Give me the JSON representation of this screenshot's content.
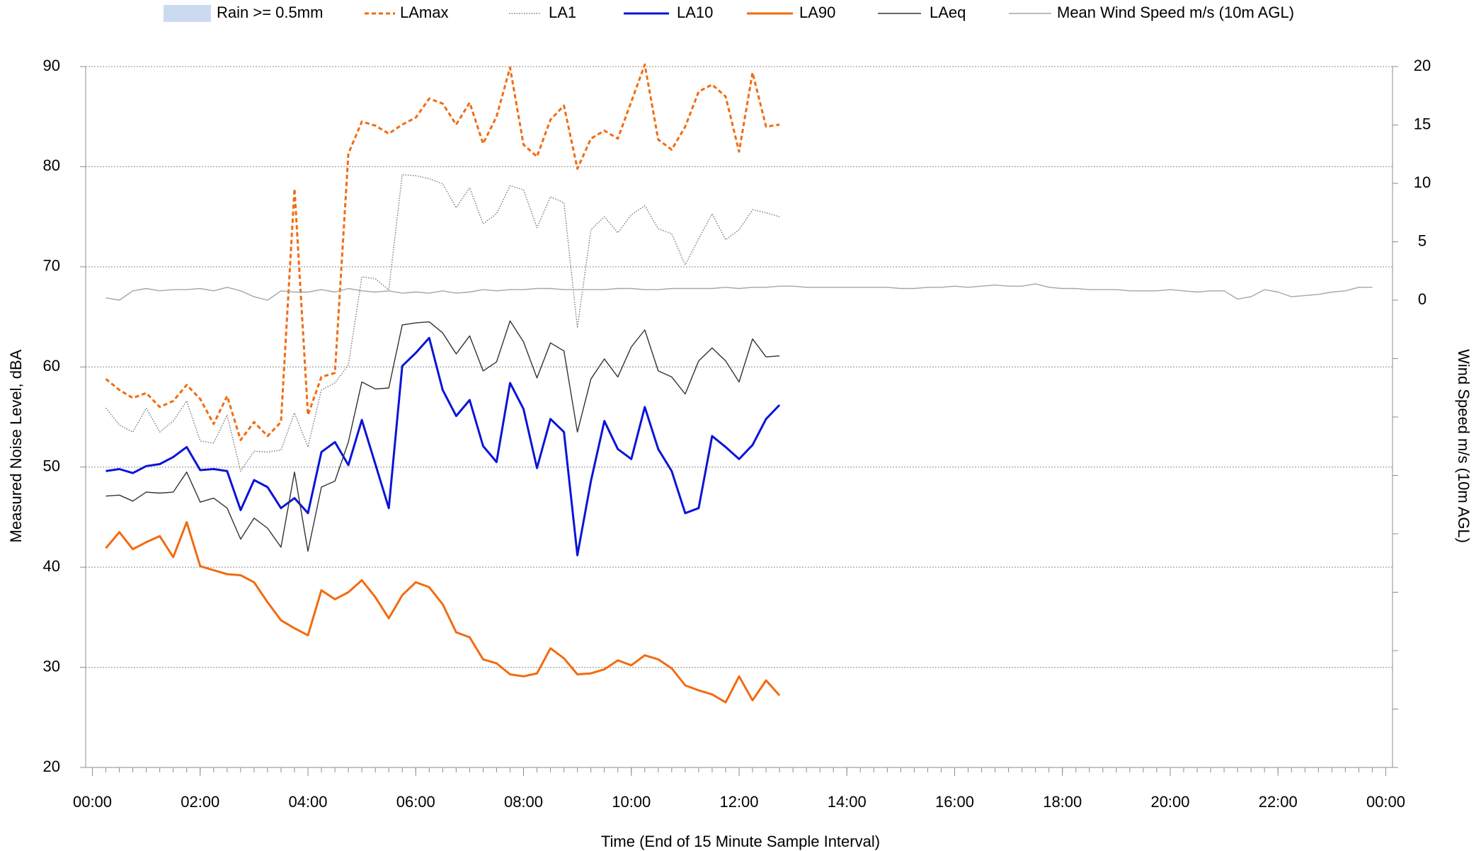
{
  "chart_data": {
    "type": "line",
    "xlabel": "Time (End of 15 Minute Sample Interval)",
    "ylabel": "Measured Noise Level, dBA",
    "y2label": "Wind Speed m/s (10m AGL)",
    "xlim": [
      -0.125,
      24.125
    ],
    "xticks": [
      {
        "value": 0,
        "label": "00:00"
      },
      {
        "value": 2,
        "label": "02:00"
      },
      {
        "value": 4,
        "label": "04:00"
      },
      {
        "value": 6,
        "label": "06:00"
      },
      {
        "value": 8,
        "label": "08:00"
      },
      {
        "value": 10,
        "label": "10:00"
      },
      {
        "value": 12,
        "label": "12:00"
      },
      {
        "value": 14,
        "label": "14:00"
      },
      {
        "value": 16,
        "label": "16:00"
      },
      {
        "value": 18,
        "label": "18:00"
      },
      {
        "value": 20,
        "label": "20:00"
      },
      {
        "value": 22,
        "label": "22:00"
      },
      {
        "value": 24,
        "label": "00:00"
      }
    ],
    "ylim": [
      20,
      90
    ],
    "yticks": [
      20,
      30,
      40,
      50,
      60,
      70,
      80,
      90
    ],
    "y2lim": [
      -40,
      20
    ],
    "y2ticks": [
      0,
      5,
      10,
      15,
      20
    ],
    "grid": true,
    "legend": "top",
    "rain": {
      "name": "Rain >= 0.5mm",
      "color": "#ccdaf0"
    },
    "x": [
      0.25,
      0.5,
      0.75,
      1,
      1.25,
      1.5,
      1.75,
      2,
      2.25,
      2.5,
      2.75,
      3,
      3.25,
      3.5,
      3.75,
      4,
      4.25,
      4.5,
      4.75,
      5,
      5.25,
      5.5,
      5.75,
      6,
      6.25,
      6.5,
      6.75,
      7,
      7.25,
      7.5,
      7.75,
      8,
      8.25,
      8.5,
      8.75,
      9,
      9.25,
      9.5,
      9.75,
      10,
      10.25,
      10.5,
      10.75,
      11,
      11.25,
      11.5,
      11.75,
      12,
      12.25,
      12.5,
      12.75,
      13,
      13.25,
      13.5,
      13.75,
      14,
      14.25,
      14.5,
      14.75,
      15,
      15.25,
      15.5,
      15.75,
      16,
      16.25,
      16.5,
      16.75,
      17,
      17.25,
      17.5,
      17.75,
      18,
      18.25,
      18.5,
      18.75,
      19,
      19.25,
      19.5,
      19.75,
      20,
      20.25,
      20.5,
      20.75,
      21,
      21.25,
      21.5,
      21.75,
      22,
      22.25,
      22.5,
      22.75,
      23,
      23.25,
      23.5,
      23.75
    ],
    "series": [
      {
        "name": "LAmax",
        "color": "#f26b0f",
        "style": "dashed",
        "weight": "bold",
        "values": [
          58.8,
          57.7,
          56.9,
          57.4,
          56.0,
          56.6,
          58.2,
          56.8,
          54.3,
          57.1,
          52.7,
          54.5,
          53.1,
          54.5,
          77.8,
          55.2,
          59.0,
          59.4,
          81.3,
          84.5,
          84.1,
          83.3,
          84.2,
          84.9,
          86.8,
          86.3,
          84.2,
          86.4,
          82.3,
          85.0,
          89.9,
          82.2,
          81.0,
          84.7,
          86.1,
          79.8,
          82.8,
          83.6,
          82.8,
          86.5,
          90.2,
          82.7,
          81.7,
          84.0,
          87.5,
          88.2,
          87.0,
          81.5,
          89.4,
          84.0,
          84.2,
          null,
          null,
          null,
          null,
          null,
          null,
          null,
          null,
          null,
          null,
          null,
          null,
          null,
          null,
          null,
          null,
          null,
          null,
          null,
          null,
          null,
          null,
          null,
          null,
          null,
          null,
          null,
          null,
          null,
          null,
          null,
          null,
          null,
          null,
          null,
          null,
          null,
          null,
          null,
          null,
          null,
          null,
          null,
          null
        ]
      },
      {
        "name": "LA1",
        "color": "#777777",
        "style": "dotted",
        "weight": "thin",
        "values": [
          55.9,
          54.2,
          53.5,
          55.9,
          53.5,
          54.6,
          56.6,
          52.6,
          52.4,
          55.2,
          49.6,
          51.6,
          51.5,
          51.7,
          55.4,
          52.0,
          57.7,
          58.4,
          60.2,
          69.0,
          68.8,
          67.7,
          79.2,
          79.1,
          78.8,
          78.3,
          75.9,
          77.9,
          74.3,
          75.3,
          78.1,
          77.7,
          73.9,
          77.0,
          76.4,
          63.9,
          73.7,
          75.0,
          73.4,
          75.2,
          76.1,
          73.8,
          73.3,
          70.2,
          72.8,
          75.3,
          72.7,
          73.7,
          75.7,
          75.4,
          75.0,
          null,
          null,
          null,
          null,
          null,
          null,
          null,
          null,
          null,
          null,
          null,
          null,
          null,
          null,
          null,
          null,
          null,
          null,
          null,
          null,
          null,
          null,
          null,
          null,
          null,
          null,
          null,
          null,
          null,
          null,
          null,
          null,
          null,
          null,
          null,
          null,
          null,
          null,
          null,
          null,
          null,
          null,
          null,
          null
        ]
      },
      {
        "name": "LA10",
        "color": "#0a14d8",
        "style": "solid",
        "weight": "bold",
        "values": [
          49.6,
          49.8,
          49.4,
          50.1,
          50.3,
          51.0,
          52.0,
          49.7,
          49.8,
          49.6,
          45.7,
          48.7,
          48.0,
          45.9,
          46.9,
          45.4,
          51.5,
          52.5,
          50.2,
          54.7,
          50.3,
          45.9,
          60.1,
          61.4,
          62.9,
          57.7,
          55.1,
          56.7,
          52.1,
          50.5,
          58.4,
          55.8,
          49.9,
          54.8,
          53.5,
          41.2,
          48.6,
          54.6,
          51.8,
          50.8,
          56.0,
          51.8,
          49.6,
          45.4,
          45.9,
          53.1,
          52.0,
          50.8,
          52.2,
          54.8,
          56.2,
          null,
          null,
          null,
          null,
          null,
          null,
          null,
          null,
          null,
          null,
          null,
          null,
          null,
          null,
          null,
          null,
          null,
          null,
          null,
          null,
          null,
          null,
          null,
          null,
          null,
          null,
          null,
          null,
          null,
          null,
          null,
          null,
          null,
          null,
          null,
          null,
          null,
          null,
          null,
          null,
          null,
          null,
          null,
          null
        ]
      },
      {
        "name": "LA90",
        "color": "#f26b0f",
        "style": "solid",
        "weight": "bold",
        "values": [
          41.9,
          43.5,
          41.8,
          42.5,
          43.1,
          41.0,
          44.5,
          40.1,
          39.7,
          39.3,
          39.2,
          38.5,
          36.5,
          34.7,
          33.9,
          33.2,
          37.7,
          36.8,
          37.5,
          38.7,
          37.0,
          34.9,
          37.2,
          38.5,
          38.0,
          36.3,
          33.5,
          33.0,
          30.8,
          30.4,
          29.3,
          29.1,
          29.4,
          31.9,
          30.9,
          29.3,
          29.4,
          29.8,
          30.7,
          30.2,
          31.2,
          30.8,
          29.9,
          28.2,
          27.7,
          27.3,
          26.5,
          29.1,
          26.7,
          28.7,
          27.2,
          null,
          null,
          null,
          null,
          null,
          null,
          null,
          null,
          null,
          null,
          null,
          null,
          null,
          null,
          null,
          null,
          null,
          null,
          null,
          null,
          null,
          null,
          null,
          null,
          null,
          null,
          null,
          null,
          null,
          null,
          null,
          null,
          null,
          null,
          null,
          null,
          null,
          null,
          null,
          null,
          null,
          null,
          null,
          null
        ]
      },
      {
        "name": "LAeq",
        "color": "#333333",
        "style": "solid",
        "weight": "thin",
        "values": [
          47.1,
          47.2,
          46.6,
          47.5,
          47.4,
          47.5,
          49.5,
          46.5,
          46.9,
          45.9,
          42.8,
          44.9,
          43.9,
          42.0,
          49.5,
          41.6,
          48.0,
          48.6,
          52.5,
          58.5,
          57.8,
          57.9,
          64.2,
          64.4,
          64.5,
          63.4,
          61.3,
          63.1,
          59.6,
          60.5,
          64.6,
          62.5,
          58.9,
          62.4,
          61.6,
          53.5,
          58.8,
          60.8,
          59.0,
          62.0,
          63.7,
          59.6,
          59.0,
          57.3,
          60.6,
          61.9,
          60.6,
          58.5,
          62.8,
          61.0,
          61.1,
          null,
          null,
          null,
          null,
          null,
          null,
          null,
          null,
          null,
          null,
          null,
          null,
          null,
          null,
          null,
          null,
          null,
          null,
          null,
          null,
          null,
          null,
          null,
          null,
          null,
          null,
          null,
          null,
          null,
          null,
          null,
          null,
          null,
          null,
          null,
          null,
          null,
          null,
          null,
          null,
          null,
          null,
          null,
          null
        ]
      },
      {
        "name": "Mean Wind Speed m/s (10m AGL)",
        "color": "#a6a6a6",
        "style": "solid",
        "weight": "thin",
        "axis": "y2",
        "values": [
          0.2,
          0.0,
          0.8,
          1.0,
          0.8,
          0.9,
          0.9,
          1.0,
          0.8,
          1.1,
          0.8,
          0.3,
          0.0,
          0.8,
          0.7,
          0.7,
          0.9,
          0.7,
          1.0,
          0.8,
          0.7,
          0.8,
          0.6,
          0.7,
          0.6,
          0.8,
          0.6,
          0.7,
          0.9,
          0.8,
          0.9,
          0.9,
          1.0,
          1.0,
          0.9,
          0.9,
          0.9,
          0.9,
          1.0,
          1.0,
          0.9,
          0.9,
          1.0,
          1.0,
          1.0,
          1.0,
          1.1,
          1.0,
          1.1,
          1.1,
          1.2,
          1.2,
          1.1,
          1.1,
          1.1,
          1.1,
          1.1,
          1.1,
          1.1,
          1.0,
          1.0,
          1.1,
          1.1,
          1.2,
          1.1,
          1.2,
          1.3,
          1.2,
          1.2,
          1.4,
          1.1,
          1.0,
          1.0,
          0.9,
          0.9,
          0.9,
          0.8,
          0.8,
          0.8,
          0.9,
          0.8,
          0.7,
          0.8,
          0.8,
          0.1,
          0.3,
          0.9,
          0.7,
          0.3,
          0.4,
          0.5,
          0.7,
          0.8,
          1.1,
          1.1
        ]
      }
    ]
  }
}
